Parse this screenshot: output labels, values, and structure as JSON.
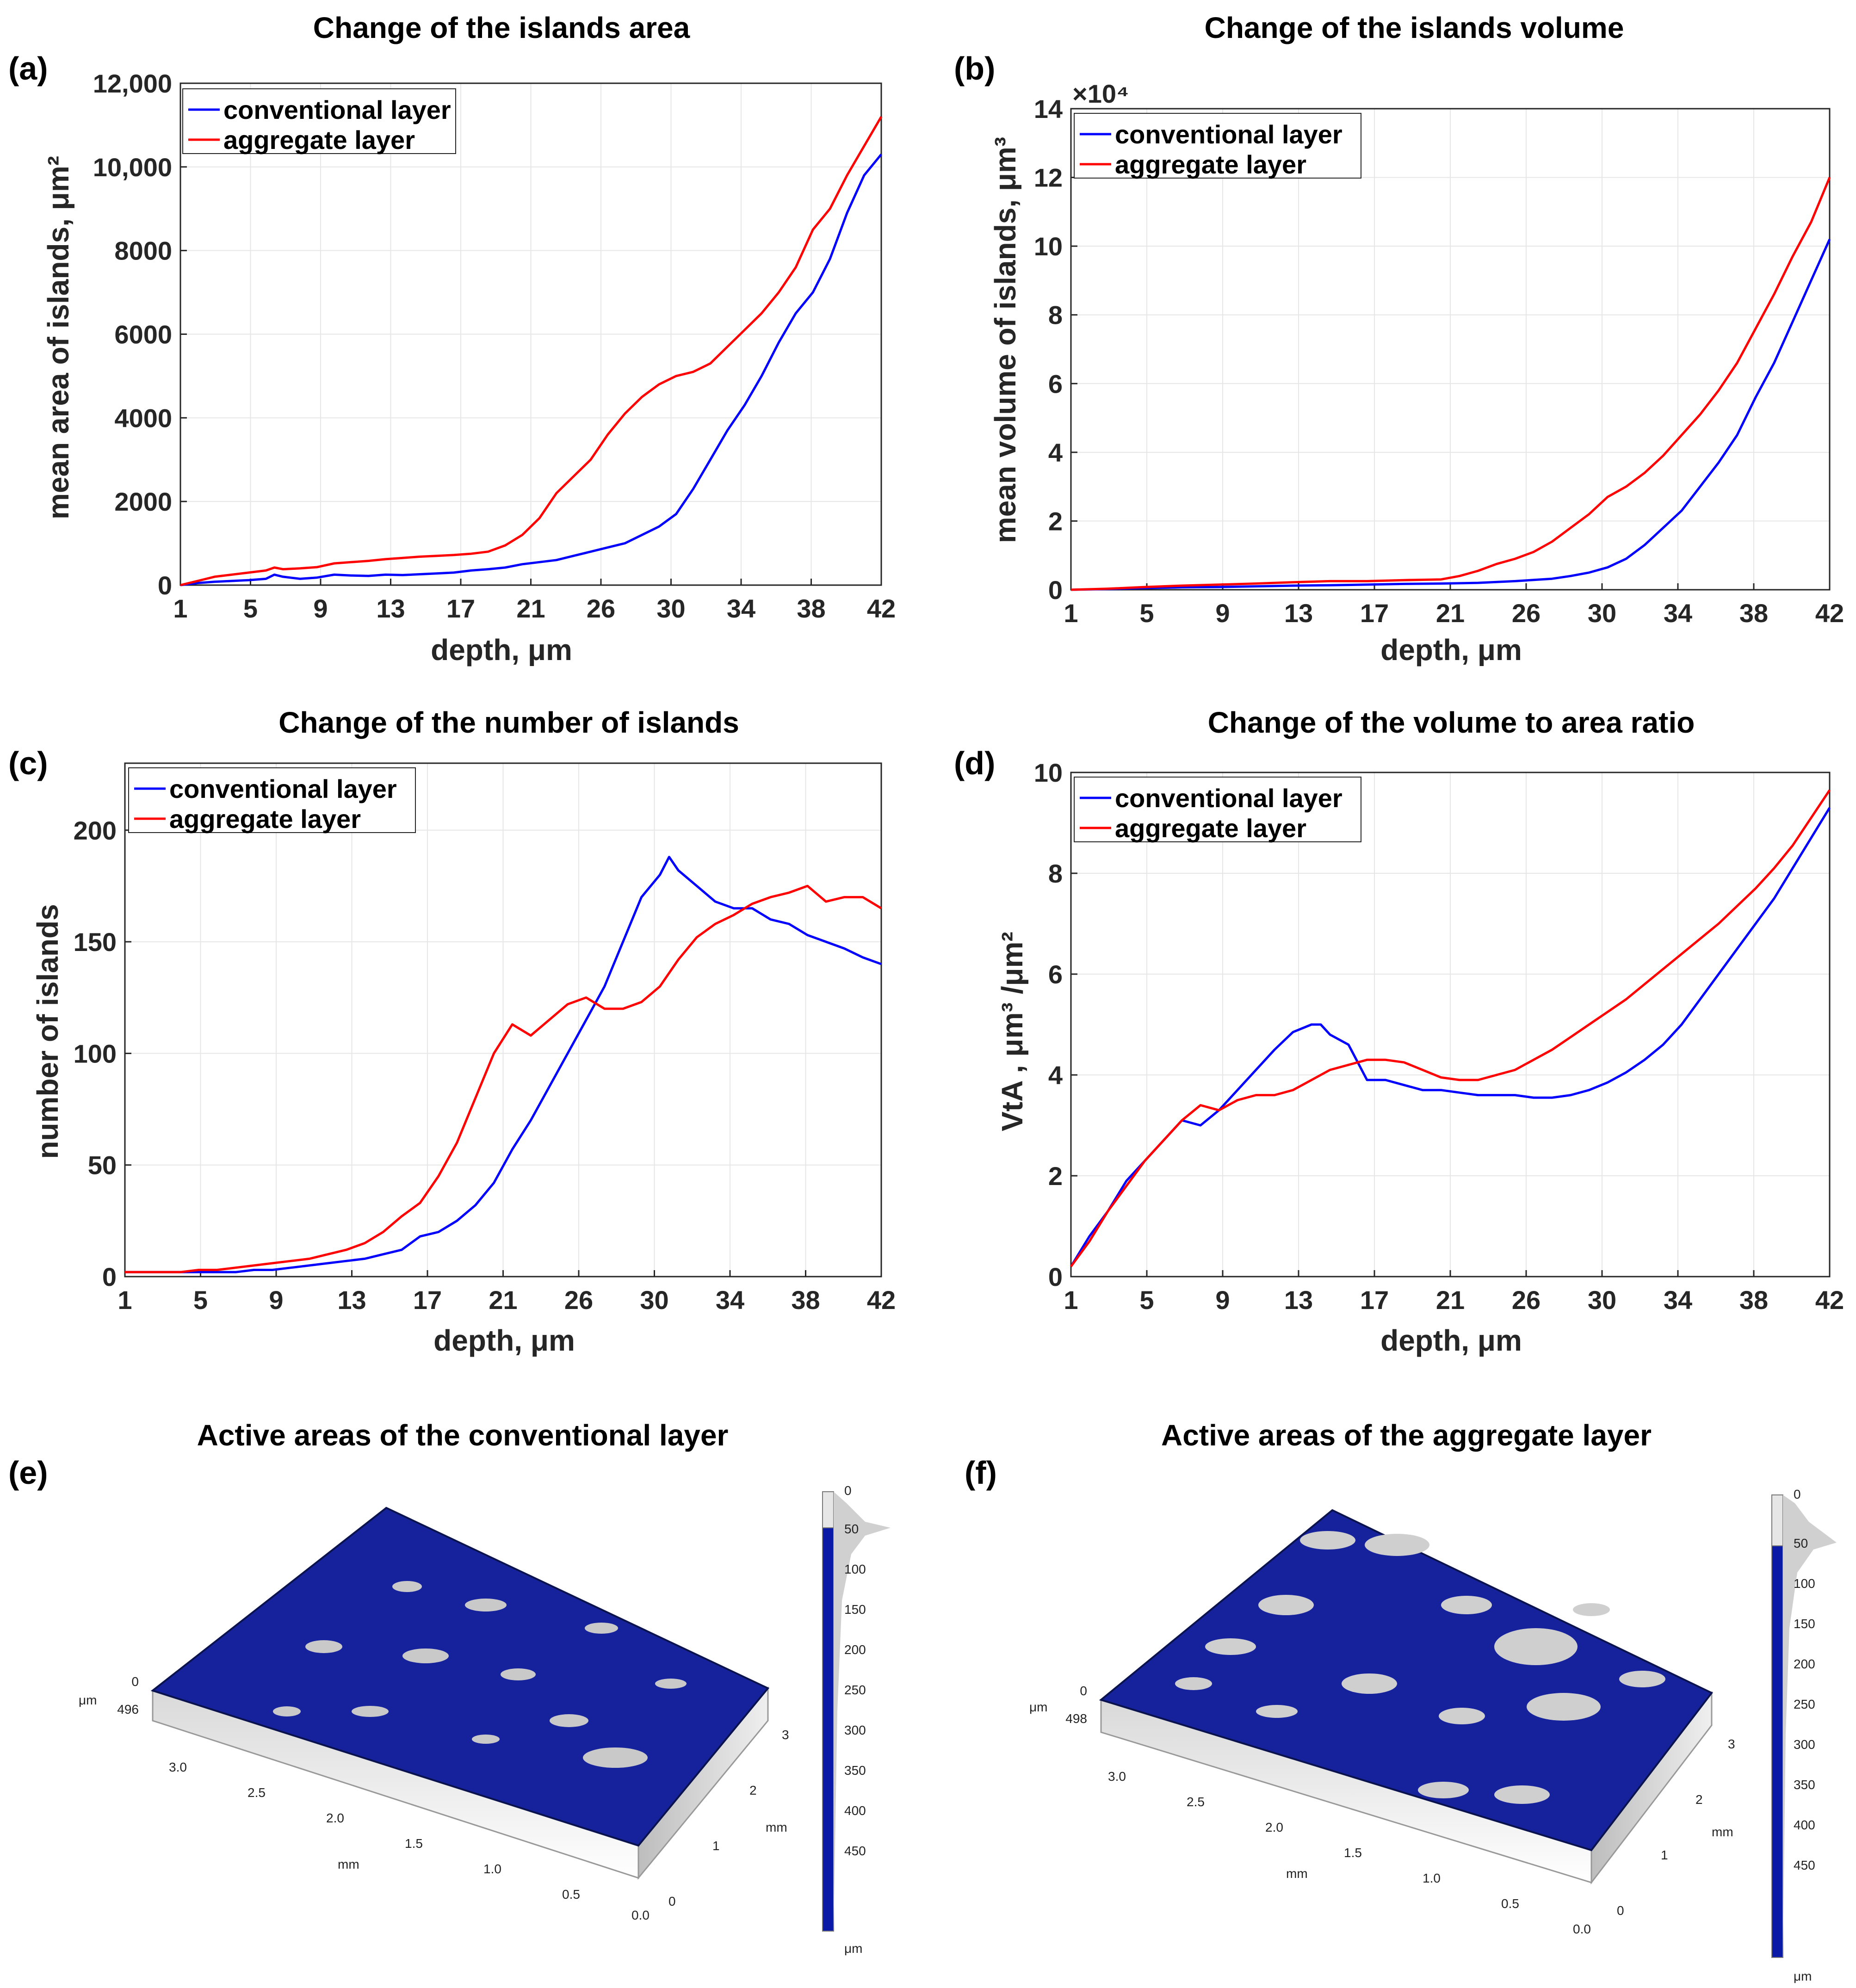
{
  "colors": {
    "conventional": "#0000ff",
    "aggregate": "#ff0000",
    "surface_blue": "#15229b",
    "surface_gray": "#c9c9c9"
  },
  "charts": [
    {
      "label": "(a)",
      "chart_data": {
        "type": "line",
        "title": "Change of the islands area",
        "xlabel": "depth, μm",
        "ylabel": "mean area of islands, μm²",
        "xticks": [
          "1",
          "5",
          "9",
          "13",
          "17",
          "21",
          "26",
          "30",
          "34",
          "38",
          "42"
        ],
        "xlim": [
          1,
          42
        ],
        "ylim": [
          0,
          12000
        ],
        "yticks": [
          0,
          2000,
          4000,
          6000,
          8000,
          10000,
          12000
        ],
        "ytick_labels": [
          "0",
          "2000",
          "4000",
          "6000",
          "8000",
          "10,000",
          "12,000"
        ],
        "legend": {
          "position": "top-left",
          "entries": [
            "conventional layer",
            "aggregate layer"
          ]
        },
        "series": [
          {
            "name": "conventional layer",
            "color": "#0000ff",
            "x": [
              1,
              2,
              3,
              4,
              5,
              6,
              6.5,
              7,
              8,
              9,
              10,
              11,
              12,
              13,
              14,
              15,
              16,
              17,
              18,
              19,
              20,
              21,
              22,
              23,
              24,
              25,
              26,
              27,
              28,
              29,
              30,
              31,
              32,
              33,
              34,
              35,
              36,
              37,
              38,
              39,
              40,
              41,
              42
            ],
            "y": [
              0,
              50,
              80,
              100,
              120,
              150,
              250,
              200,
              150,
              180,
              250,
              230,
              220,
              250,
              240,
              260,
              280,
              300,
              350,
              380,
              420,
              500,
              550,
              600,
              700,
              800,
              900,
              1000,
              1200,
              1400,
              1700,
              2300,
              3000,
              3700,
              4300,
              5000,
              5800,
              6500,
              7000,
              7800,
              8900,
              9800,
              10300
            ]
          },
          {
            "name": "aggregate layer",
            "color": "#ff0000",
            "x": [
              1,
              2,
              3,
              4,
              5,
              6,
              6.5,
              7,
              8,
              9,
              10,
              11,
              12,
              13,
              14,
              15,
              16,
              17,
              18,
              19,
              20,
              21,
              22,
              23,
              24,
              25,
              26,
              27,
              28,
              29,
              30,
              31,
              32,
              33,
              34,
              35,
              36,
              37,
              38,
              39,
              40,
              41,
              42
            ],
            "y": [
              0,
              100,
              200,
              250,
              300,
              350,
              420,
              380,
              400,
              430,
              520,
              550,
              580,
              620,
              650,
              680,
              700,
              720,
              750,
              800,
              950,
              1200,
              1600,
              2200,
              2600,
              3000,
              3600,
              4100,
              4500,
              4800,
              5000,
              5100,
              5300,
              5700,
              6100,
              6500,
              7000,
              7600,
              8500,
              9000,
              9800,
              10500,
              11200
            ]
          }
        ]
      }
    },
    {
      "label": "(b)",
      "chart_data": {
        "type": "line",
        "title": "Change of the islands volume",
        "xlabel": "depth, μm",
        "ylabel": "mean volume of islands, μm³",
        "xticks": [
          "1",
          "5",
          "9",
          "13",
          "17",
          "21",
          "26",
          "30",
          "34",
          "38",
          "42"
        ],
        "xlim": [
          1,
          42
        ],
        "ylim": [
          0,
          14
        ],
        "yticks": [
          0,
          2,
          4,
          6,
          8,
          10,
          12,
          14
        ],
        "ytick_labels": [
          "0",
          "2",
          "4",
          "6",
          "8",
          "10",
          "12",
          "14"
        ],
        "y_exponent": "×10⁴",
        "legend": {
          "position": "top-left",
          "entries": [
            "conventional layer",
            "aggregate layer"
          ]
        },
        "series": [
          {
            "name": "conventional layer",
            "color": "#0000ff",
            "x": [
              1,
              3,
              5,
              7,
              9,
              11,
              13,
              15,
              17,
              19,
              21,
              23,
              25,
              27,
              28,
              29,
              30,
              31,
              32,
              33,
              34,
              35,
              36,
              37,
              38,
              39,
              40,
              41,
              42
            ],
            "y": [
              0,
              0.02,
              0.05,
              0.07,
              0.08,
              0.1,
              0.12,
              0.13,
              0.15,
              0.17,
              0.18,
              0.2,
              0.25,
              0.32,
              0.4,
              0.5,
              0.65,
              0.9,
              1.3,
              1.8,
              2.3,
              3.0,
              3.7,
              4.5,
              5.6,
              6.6,
              7.8,
              9.0,
              10.2
            ]
          },
          {
            "name": "aggregate layer",
            "color": "#ff0000",
            "x": [
              1,
              3,
              5,
              7,
              9,
              11,
              13,
              15,
              17,
              19,
              21,
              22,
              23,
              24,
              25,
              26,
              27,
              28,
              29,
              30,
              31,
              32,
              33,
              34,
              35,
              36,
              37,
              38,
              39,
              40,
              41,
              42
            ],
            "y": [
              0,
              0.03,
              0.08,
              0.12,
              0.15,
              0.18,
              0.22,
              0.25,
              0.25,
              0.28,
              0.3,
              0.4,
              0.55,
              0.75,
              0.9,
              1.1,
              1.4,
              1.8,
              2.2,
              2.7,
              3.0,
              3.4,
              3.9,
              4.5,
              5.1,
              5.8,
              6.6,
              7.6,
              8.6,
              9.7,
              10.7,
              12.0
            ]
          }
        ]
      }
    },
    {
      "label": "(c)",
      "chart_data": {
        "type": "line",
        "title": "Change of the number of islands",
        "xlabel": "depth, μm",
        "ylabel": "number of islands",
        "xticks": [
          "1",
          "5",
          "9",
          "13",
          "17",
          "21",
          "26",
          "30",
          "34",
          "38",
          "42"
        ],
        "xlim": [
          1,
          42
        ],
        "ylim": [
          0,
          230
        ],
        "yticks": [
          0,
          50,
          100,
          150,
          200
        ],
        "ytick_labels": [
          "0",
          "50",
          "100",
          "150",
          "200"
        ],
        "legend": {
          "position": "top-left",
          "entries": [
            "conventional layer",
            "aggregate layer"
          ]
        },
        "series": [
          {
            "name": "conventional layer",
            "color": "#0000ff",
            "x": [
              1,
              2,
              3,
              4,
              5,
              6,
              7,
              8,
              9,
              10,
              11,
              12,
              13,
              14,
              15,
              16,
              17,
              18,
              19,
              20,
              21,
              22,
              23,
              24,
              25,
              26,
              27,
              28,
              29,
              30,
              30.5,
              31,
              32,
              33,
              34,
              35,
              36,
              37,
              38,
              39,
              40,
              41,
              42
            ],
            "y": [
              2,
              2,
              2,
              2,
              2,
              2,
              2,
              3,
              3,
              4,
              5,
              6,
              7,
              8,
              10,
              12,
              18,
              20,
              25,
              32,
              42,
              57,
              70,
              85,
              100,
              115,
              130,
              150,
              170,
              180,
              188,
              182,
              175,
              168,
              165,
              165,
              160,
              158,
              153,
              150,
              147,
              143,
              140
            ]
          },
          {
            "name": "aggregate layer",
            "color": "#ff0000",
            "x": [
              1,
              2,
              3,
              4,
              5,
              6,
              7,
              8,
              9,
              10,
              11,
              12,
              13,
              14,
              15,
              16,
              17,
              18,
              19,
              20,
              21,
              22,
              23,
              24,
              25,
              26,
              27,
              28,
              29,
              30,
              31,
              32,
              33,
              34,
              35,
              36,
              37,
              38,
              39,
              40,
              41,
              42
            ],
            "y": [
              2,
              2,
              2,
              2,
              3,
              3,
              4,
              5,
              6,
              7,
              8,
              10,
              12,
              15,
              20,
              27,
              33,
              45,
              60,
              80,
              100,
              113,
              108,
              115,
              122,
              125,
              120,
              120,
              123,
              130,
              142,
              152,
              158,
              162,
              167,
              170,
              172,
              175,
              168,
              170,
              170,
              165
            ]
          }
        ]
      }
    },
    {
      "label": "(d)",
      "chart_data": {
        "type": "line",
        "title": "Change of the volume to area ratio",
        "xlabel": "depth, μm",
        "ylabel": "VtA , μm³ /μm²",
        "xticks": [
          "1",
          "5",
          "9",
          "13",
          "17",
          "21",
          "26",
          "30",
          "34",
          "38",
          "42"
        ],
        "xlim": [
          1,
          42
        ],
        "ylim": [
          0,
          10
        ],
        "yticks": [
          0,
          2,
          4,
          6,
          8,
          10
        ],
        "ytick_labels": [
          "0",
          "2",
          "4",
          "6",
          "8",
          "10"
        ],
        "legend": {
          "position": "top-left",
          "entries": [
            "conventional layer",
            "aggregate layer"
          ]
        },
        "series": [
          {
            "name": "conventional layer",
            "color": "#0000ff",
            "x": [
              1,
              2,
              3,
              4,
              5,
              6,
              7,
              8,
              9,
              10,
              11,
              12,
              13,
              14,
              14.5,
              15,
              16,
              17,
              18,
              19,
              20,
              21,
              22,
              23,
              24,
              25,
              26,
              27,
              28,
              29,
              30,
              31,
              32,
              33,
              34,
              35,
              36,
              37,
              38,
              39,
              40,
              41,
              42
            ],
            "y": [
              0.2,
              0.8,
              1.3,
              1.9,
              2.3,
              2.7,
              3.1,
              3.0,
              3.3,
              3.7,
              4.1,
              4.5,
              4.85,
              5.0,
              5.0,
              4.8,
              4.6,
              3.9,
              3.9,
              3.8,
              3.7,
              3.7,
              3.65,
              3.6,
              3.6,
              3.6,
              3.55,
              3.55,
              3.6,
              3.7,
              3.85,
              4.05,
              4.3,
              4.6,
              5.0,
              5.5,
              6.0,
              6.5,
              7.0,
              7.5,
              8.1,
              8.7,
              9.3
            ]
          },
          {
            "name": "aggregate layer",
            "color": "#ff0000",
            "x": [
              1,
              2,
              3,
              4,
              5,
              6,
              7,
              8,
              9,
              10,
              11,
              12,
              13,
              14,
              15,
              16,
              17,
              18,
              19,
              20,
              21,
              22,
              23,
              24,
              25,
              26,
              27,
              28,
              29,
              30,
              31,
              32,
              33,
              34,
              35,
              36,
              37,
              38,
              39,
              40,
              41,
              42
            ],
            "y": [
              0.2,
              0.7,
              1.3,
              1.8,
              2.3,
              2.7,
              3.1,
              3.4,
              3.3,
              3.5,
              3.6,
              3.6,
              3.7,
              3.9,
              4.1,
              4.2,
              4.3,
              4.3,
              4.25,
              4.1,
              3.95,
              3.9,
              3.9,
              4.0,
              4.1,
              4.3,
              4.5,
              4.75,
              5.0,
              5.25,
              5.5,
              5.8,
              6.1,
              6.4,
              6.7,
              7.0,
              7.35,
              7.7,
              8.1,
              8.55,
              9.1,
              9.65
            ]
          }
        ]
      }
    }
  ],
  "images": [
    {
      "label": "(e)",
      "title": "Active areas of the conventional layer",
      "axis": {
        "unit_z": "μm",
        "z_top": "0",
        "z_bottom": "496",
        "x_ticks": [
          "3.0",
          "2.5",
          "2.0",
          "1.5",
          "1.0",
          "0.5",
          "0.0"
        ],
        "x_unit": "mm",
        "y_ticks": [
          "0",
          "1",
          "2",
          "3"
        ],
        "y_unit": "mm"
      },
      "colorbar": {
        "ticks": [
          "0",
          "50",
          "100",
          "150",
          "200",
          "250",
          "300",
          "350",
          "400",
          "450"
        ],
        "unit": "μm"
      }
    },
    {
      "label": "(f)",
      "title": "Active areas of the aggregate layer",
      "axis": {
        "unit_z": "μm",
        "z_top": "0",
        "z_bottom": "498",
        "x_ticks": [
          "3.0",
          "2.5",
          "2.0",
          "1.5",
          "1.0",
          "0.5",
          "0.0"
        ],
        "x_unit": "mm",
        "y_ticks": [
          "0",
          "1",
          "2",
          "3"
        ],
        "y_unit": "mm"
      },
      "colorbar": {
        "ticks": [
          "0",
          "50",
          "100",
          "150",
          "200",
          "250",
          "300",
          "350",
          "400",
          "450"
        ],
        "unit": "μm"
      }
    }
  ]
}
